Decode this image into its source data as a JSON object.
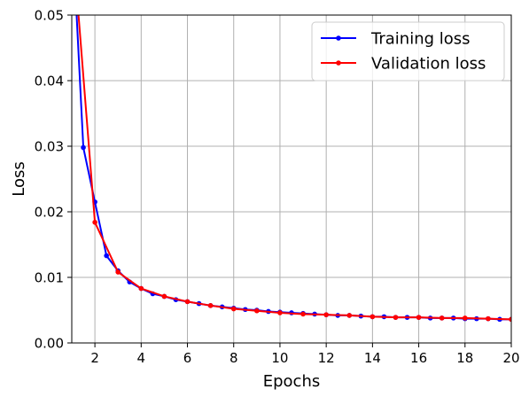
{
  "chart_data": {
    "type": "line",
    "title": "",
    "xlabel": "Epochs",
    "ylabel": "Loss",
    "xlim": [
      1,
      20
    ],
    "ylim": [
      0,
      0.05
    ],
    "x_ticks": [
      "2",
      "4",
      "6",
      "8",
      "10",
      "12",
      "14",
      "16",
      "18",
      "20"
    ],
    "y_ticks": [
      "0.00",
      "0.01",
      "0.02",
      "0.03",
      "0.04",
      "0.05"
    ],
    "grid": true,
    "legend_position": "top-right",
    "series": [
      {
        "name": "Training loss",
        "color": "#0000ff",
        "x": [
          1,
          1.5,
          2,
          2.5,
          3,
          3.5,
          4,
          4.5,
          5,
          5.5,
          6,
          6.5,
          7,
          7.5,
          8,
          8.5,
          9,
          9.5,
          10,
          10.5,
          11,
          11.5,
          12,
          12.5,
          13,
          13.5,
          14,
          14.5,
          15,
          15.5,
          16,
          16.5,
          17,
          17.5,
          18,
          18.5,
          19,
          19.5,
          20
        ],
        "y": [
          0.0645,
          0.0298,
          0.0215,
          0.0133,
          0.011,
          0.0093,
          0.0083,
          0.0075,
          0.0071,
          0.0066,
          0.0063,
          0.006,
          0.0057,
          0.0055,
          0.0053,
          0.0051,
          0.005,
          0.0048,
          0.0047,
          0.0046,
          0.0045,
          0.0044,
          0.0043,
          0.0042,
          0.0042,
          0.0041,
          0.004,
          0.004,
          0.0039,
          0.0039,
          0.0039,
          0.0038,
          0.0038,
          0.0038,
          0.0037,
          0.0037,
          0.0037,
          0.0036,
          0.0036
        ]
      },
      {
        "name": "Validation loss",
        "color": "#ff0000",
        "x": [
          1,
          2,
          3,
          4,
          5,
          6,
          7,
          8,
          9,
          10,
          11,
          12,
          13,
          14,
          15,
          16,
          17,
          18,
          19,
          20
        ],
        "y": [
          0.063,
          0.0184,
          0.0108,
          0.0083,
          0.0071,
          0.0063,
          0.0057,
          0.0052,
          0.0049,
          0.0046,
          0.0044,
          0.0043,
          0.0042,
          0.004,
          0.0039,
          0.0039,
          0.0038,
          0.0038,
          0.0037,
          0.0036
        ]
      }
    ]
  }
}
